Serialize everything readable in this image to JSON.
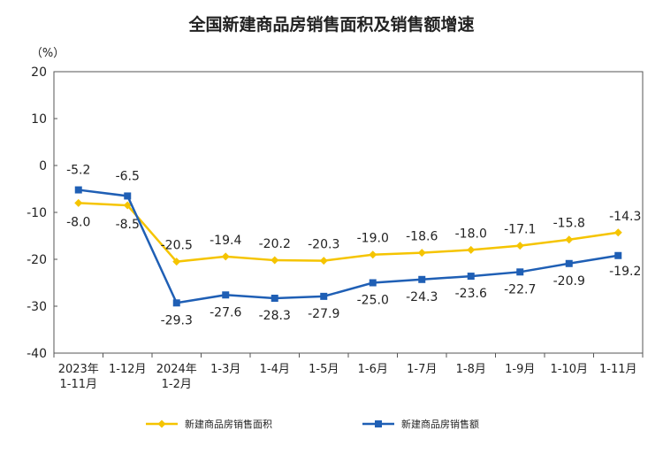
{
  "chart_data": {
    "type": "line",
    "title": "全国新建商品房销售面积及销售额增速",
    "unit_label": "（%）",
    "xlabel": "",
    "ylabel": "",
    "ylim": [
      -40,
      20
    ],
    "yticks": [
      20,
      10,
      0,
      -10,
      -20,
      -30,
      -40
    ],
    "categories": [
      "2023年\n1-11月",
      "1-12月",
      "2024年\n1-2月",
      "1-3月",
      "1-4月",
      "1-5月",
      "1-6月",
      "1-7月",
      "1-8月",
      "1-9月",
      "1-10月",
      "1-11月"
    ],
    "grid": false,
    "legend_position": "bottom",
    "series": [
      {
        "name": "新建商品房销售面积",
        "color": "#f5c400",
        "marker": "diamond",
        "values": [
          -8.0,
          -8.5,
          -20.5,
          -19.4,
          -20.2,
          -20.3,
          -19.0,
          -18.6,
          -18.0,
          -17.1,
          -15.8,
          -14.3
        ],
        "labels": [
          "-8.0",
          "-8.5",
          "-20.5",
          "-19.4",
          "-20.2",
          "-20.3",
          "-19.0",
          "-18.6",
          "-18.0",
          "-17.1",
          "-15.8",
          "-14.3"
        ]
      },
      {
        "name": "新建商品房销售额",
        "color": "#1f5fb5",
        "marker": "square",
        "values": [
          -5.2,
          -6.5,
          -29.3,
          -27.6,
          -28.3,
          -27.9,
          -25.0,
          -24.3,
          -23.6,
          -22.7,
          -20.9,
          -19.2
        ],
        "labels": [
          "-5.2",
          "-6.5",
          "-29.3",
          "-27.6",
          "-28.3",
          "-27.9",
          "-25.0",
          "-24.3",
          "-23.6",
          "-22.7",
          "-20.9",
          "-19.2"
        ]
      }
    ]
  }
}
